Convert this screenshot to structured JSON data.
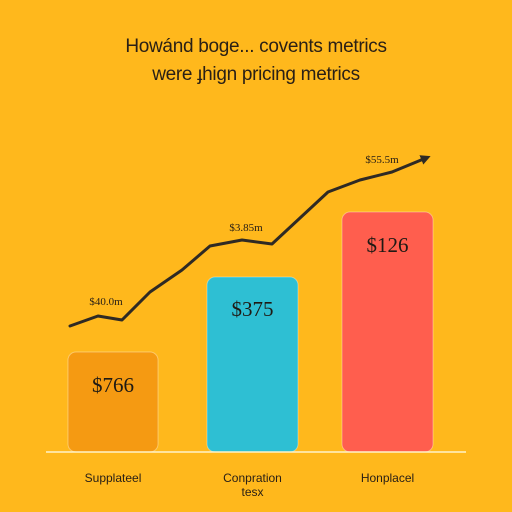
{
  "chart_data": {
    "type": "bar",
    "title_line1": "Howánd boge... covents metrics",
    "title_line2": "were ɟhign pricing metrics",
    "categories": [
      [
        "Supplateel"
      ],
      [
        "Conpration",
        "tesx"
      ],
      [
        "Honplacel"
      ]
    ],
    "values": [
      766,
      375,
      126
    ],
    "value_labels": [
      "$766",
      "$375",
      "$126"
    ],
    "bar_colors": [
      "#F59A12",
      "#2EBFD3",
      "#FF5E4E"
    ],
    "trend_line": {
      "color": "#2f2a24",
      "labels": [
        "$40.0m",
        "$3.85m",
        "$55.5m"
      ]
    },
    "grid": false,
    "legend": "none"
  }
}
